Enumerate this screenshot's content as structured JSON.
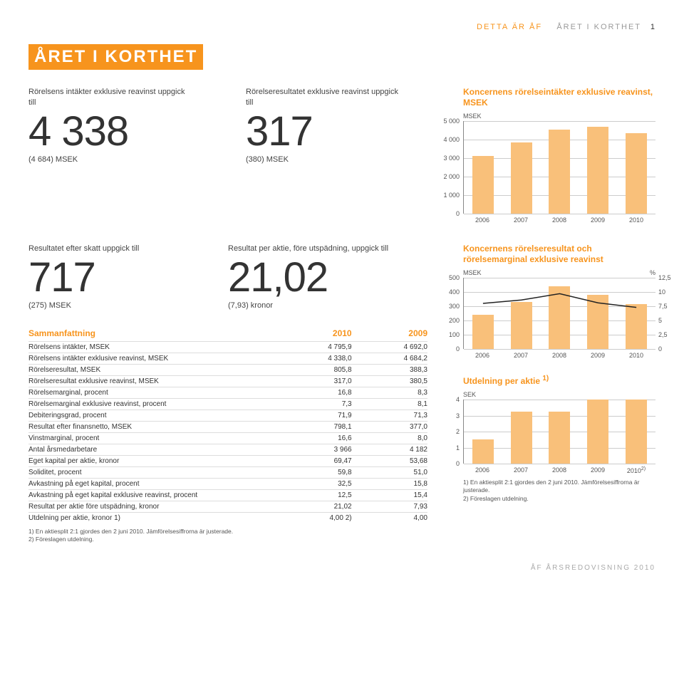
{
  "eyebrow": {
    "accent": "DETTA ÄR ÅF",
    "rest": "ÅRET I KORTHET",
    "page": "1"
  },
  "title": "ÅRET I KORTHET",
  "kpi1": {
    "label": "Rörelsens intäkter exklusive reavinst uppgick till",
    "value": "4 338",
    "sub": "(4 684) MSEK"
  },
  "kpi2": {
    "label": "Rörelseresultatet exklusive reavinst uppgick till",
    "value": "317",
    "sub": "(380) MSEK"
  },
  "kpi3": {
    "label": "Resultatet efter skatt uppgick till",
    "value": "717",
    "sub": "(275) MSEK"
  },
  "kpi4": {
    "label": "Resultat per aktie, före utspädning, uppgick till",
    "value": "21,02",
    "sub": "(7,93) kronor"
  },
  "chartA": {
    "title": "Koncernens rörelseintäkter exklusive reavinst, MSEK",
    "unit": "MSEK",
    "ymax": 5000,
    "ystep": 1000,
    "years": [
      "2006",
      "2007",
      "2008",
      "2009",
      "2010"
    ],
    "values": [
      3100,
      3850,
      4550,
      4684,
      4338
    ],
    "bar_color": "#f9c07a",
    "grid_color": "#cccccc"
  },
  "chartB": {
    "title": "Koncernens rörelseresultat och rörelsemarginal exklusive reavinst",
    "unit_l": "MSEK",
    "unit_r": "%",
    "ymax": 500,
    "ystep": 100,
    "ymax_r": 12.5,
    "ystep_r": 2.5,
    "years": [
      "2006",
      "2007",
      "2008",
      "2009",
      "2010"
    ],
    "bars": [
      240,
      330,
      440,
      380,
      317
    ],
    "line": [
      8.0,
      8.6,
      9.7,
      8.1,
      7.3
    ],
    "bar_color": "#f9c07a",
    "line_color": "#222222"
  },
  "chartC": {
    "title": "Utdelning per aktie",
    "title_sup": "1)",
    "unit": "SEK",
    "ymax": 4,
    "ystep": 1,
    "years": [
      "2006",
      "2007",
      "2008",
      "2009",
      "2010"
    ],
    "year5_sup": "2)",
    "values": [
      1.5,
      3.25,
      3.25,
      4.0,
      4.0
    ],
    "bar_color": "#f9c07a",
    "footnotes": [
      "1) En aktiesplit 2:1 gjordes den 2 juni 2010. Jämförelsesiffrorna är justerade.",
      "2) Föreslagen utdelning."
    ]
  },
  "summary": {
    "header": [
      "Sammanfattning",
      "2010",
      "2009"
    ],
    "rows": [
      [
        "Rörelsens intäkter, MSEK",
        "4 795,9",
        "4 692,0"
      ],
      [
        "Rörelsens intäkter exklusive reavinst, MSEK",
        "4 338,0",
        "4 684,2"
      ],
      [
        "Rörelseresultat, MSEK",
        "805,8",
        "388,3"
      ],
      [
        "Rörelseresultat exklusive reavinst, MSEK",
        "317,0",
        "380,5"
      ],
      [
        "Rörelsemarginal, procent",
        "16,8",
        "8,3"
      ],
      [
        "Rörelsemarginal exklusive reavinst, procent",
        "7,3",
        "8,1"
      ],
      [
        "Debiteringsgrad, procent",
        "71,9",
        "71,3"
      ],
      [
        "Resultat efter finansnetto, MSEK",
        "798,1",
        "377,0"
      ],
      [
        "Vinstmarginal, procent",
        "16,6",
        "8,0"
      ],
      [
        "Antal årsmedarbetare",
        "3 966",
        "4 182"
      ],
      [
        "Eget kapital per aktie, kronor",
        "69,47",
        "53,68"
      ],
      [
        "Soliditet, procent",
        "59,8",
        "51,0"
      ],
      [
        "Avkastning på eget kapital, procent",
        "32,5",
        "15,8"
      ],
      [
        "Avkastning på eget kapital exklusive reavinst, procent",
        "12,5",
        "15,4"
      ],
      [
        "Resultat per aktie före utspädning, kronor",
        "21,02",
        "7,93"
      ],
      [
        "Utdelning per aktie, kronor 1)",
        "4,00 2)",
        "4,00"
      ]
    ],
    "footnotes": [
      "1) En aktiesplit 2:1 gjordes den 2 juni 2010. Jämförelsesiffrorna är justerade.",
      "2) Föreslagen utdelning."
    ]
  },
  "footer": "ÅF ÅRSREDOVISNING 2010"
}
